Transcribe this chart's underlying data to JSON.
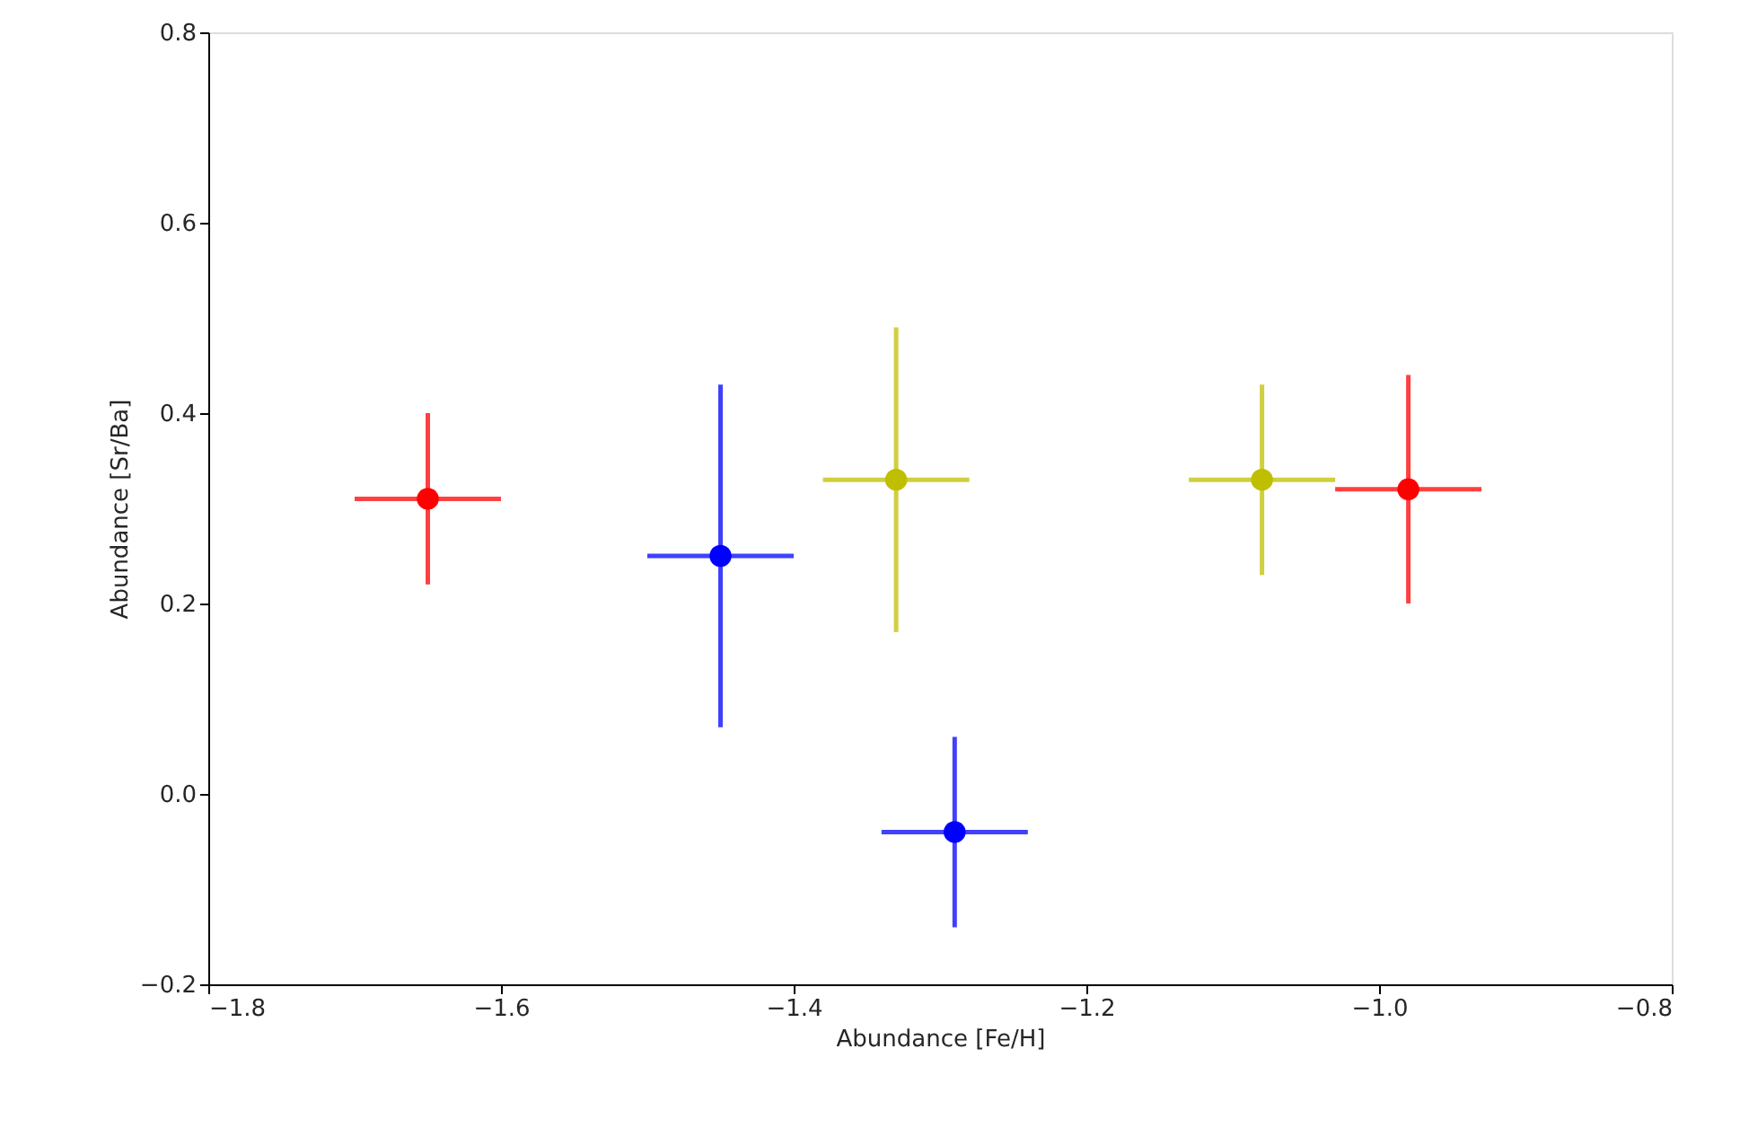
{
  "chart_data": {
    "type": "scatter",
    "xlabel": "Abundance [Fe/H]",
    "ylabel": "Abundance [Sr/Ba]",
    "xlim": [
      -1.8,
      -0.8
    ],
    "xticks": [
      -1.8,
      -1.6,
      -1.4,
      -1.2,
      {
        "value": -1.0,
        "label": "−1.0"
      },
      -0.8
    ],
    "ylim": [
      -0.2,
      0.8
    ],
    "yticks": [
      -0.2,
      {
        "value": 0.0,
        "label": "0.0"
      },
      0.2,
      0.4,
      0.6,
      0.8
    ],
    "grid": false,
    "legend": false,
    "marker": "circle",
    "series": [
      {
        "color": "#ff0000",
        "x": [
          -1.65,
          -0.98
        ],
        "values": [
          0.31,
          0.32
        ],
        "errors": [
          0.09,
          0.12
        ],
        "xerrors": [
          0.05,
          0.05
        ]
      },
      {
        "color": "#0000ff",
        "x": [
          -1.45,
          -1.29
        ],
        "values": [
          0.25,
          -0.04
        ],
        "errors": [
          0.18,
          0.1
        ],
        "xerrors": [
          0.05,
          0.05
        ]
      },
      {
        "color": "#bfbf00",
        "x": [
          -1.33,
          -1.08
        ],
        "values": [
          0.33,
          0.33
        ],
        "errors": [
          0.16,
          0.1
        ],
        "xerrors": [
          0.05,
          0.05
        ]
      }
    ]
  }
}
